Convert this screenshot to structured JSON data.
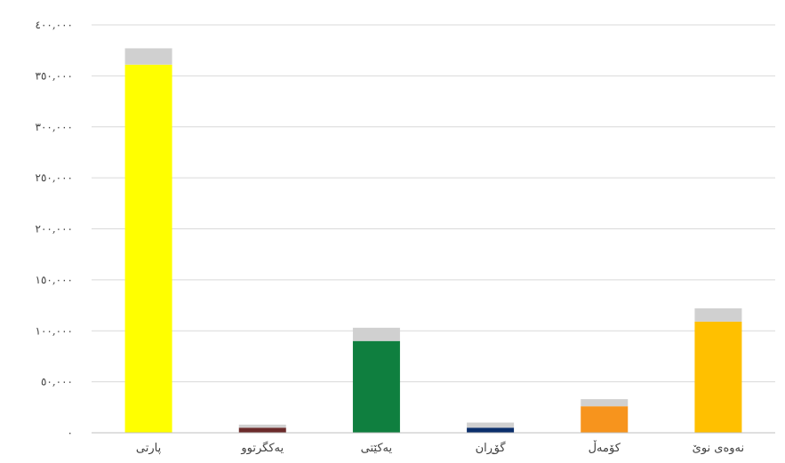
{
  "chart_data": {
    "type": "bar",
    "stacked": true,
    "grid": true,
    "title": "",
    "xlabel": "",
    "ylabel": "",
    "ylim": [
      0,
      400000
    ],
    "y_ticks": [
      0,
      50000,
      100000,
      150000,
      200000,
      250000,
      300000,
      350000,
      400000
    ],
    "y_tick_labels": [
      "٠",
      "٥٠,٠٠٠",
      "١٠٠,٠٠٠",
      "١٥٠,٠٠٠",
      "٢٠٠,٠٠٠",
      "٢٥٠,٠٠٠",
      "٣٠٠,٠٠٠",
      "٣٥٠,٠٠٠",
      "٤٠٠,٠٠٠"
    ],
    "categories": [
      "پارتی",
      "یەکگرتوو",
      "یەکێتی",
      "گۆڕان",
      "کۆمەڵ",
      "نەوەی نوێ"
    ],
    "series": [
      {
        "values": [
          361000,
          5000,
          90000,
          5000,
          26000,
          109000
        ],
        "colors": [
          "#ffff00",
          "#6b2b2b",
          "#0f7f3f",
          "#0b2f6b",
          "#f7941d",
          "#ffc000"
        ]
      },
      {
        "values": [
          16000,
          3000,
          13000,
          5000,
          7000,
          13000
        ],
        "colors": [
          "#d0d0d0",
          "#d0d0d0",
          "#d0d0d0",
          "#d0d0d0",
          "#d0d0d0",
          "#d0d0d0"
        ]
      }
    ],
    "grid_color": "#d9d9d9",
    "axis_color": "#bfbfbf"
  }
}
